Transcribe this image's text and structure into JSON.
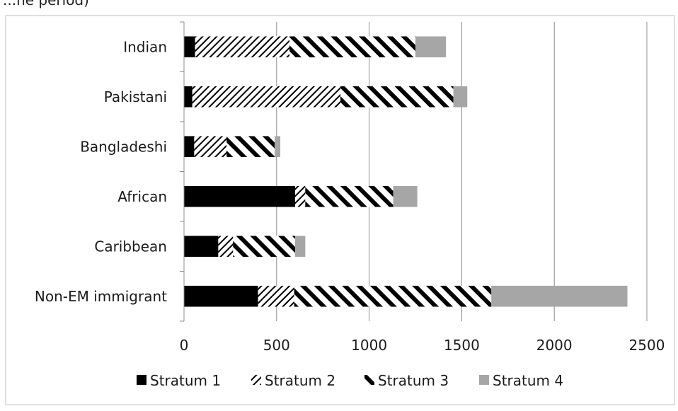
{
  "header_fragment": "...ne period)",
  "chart_data": {
    "type": "bar",
    "orientation": "horizontal",
    "stacked": true,
    "title": "",
    "xlabel": "",
    "ylabel": "",
    "categories": [
      "Indian",
      "Pakistani",
      "Bangladeshi",
      "African",
      "Caribbean",
      "Non-EM immigrant"
    ],
    "series": [
      {
        "name": "Stratum 1",
        "values": [
          60,
          45,
          55,
          600,
          185,
          400
        ],
        "color": "#000000",
        "pattern": "solid"
      },
      {
        "name": "Stratum 2",
        "values": [
          510,
          800,
          175,
          55,
          80,
          195
        ],
        "color": "#000000",
        "pattern": "thin-diagonal"
      },
      {
        "name": "Stratum 3",
        "values": [
          680,
          610,
          260,
          475,
          335,
          1065
        ],
        "color": "#000000",
        "pattern": "thick-diagonal"
      },
      {
        "name": "Stratum 4",
        "values": [
          165,
          75,
          30,
          130,
          55,
          735
        ],
        "color": "#a6a6a6",
        "pattern": "solid"
      }
    ],
    "xlim": [
      0,
      2500
    ],
    "xticks": [
      "0",
      "500",
      "1000",
      "1500",
      "2000",
      "2500"
    ],
    "grid": "vertical",
    "legend": "bottom"
  }
}
